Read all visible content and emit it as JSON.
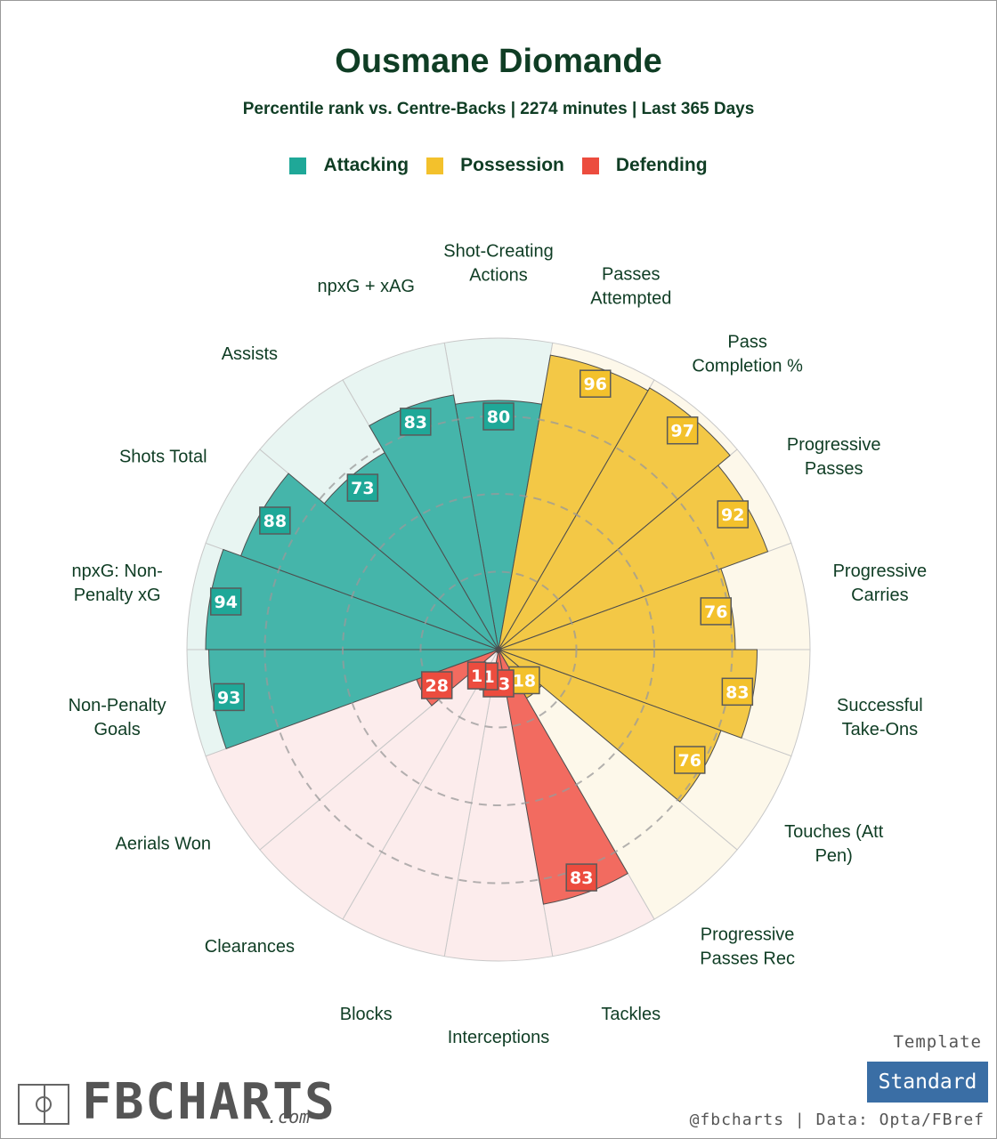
{
  "title": "Ousmane Diomande",
  "subtitle": "Percentile rank vs. Centre-Backs | 2274 minutes | Last 365 Days",
  "legend": [
    {
      "name": "Attacking",
      "color": "#1fa898"
    },
    {
      "name": "Possession",
      "color": "#f3c12c"
    },
    {
      "name": "Defending",
      "color": "#ec4c3e"
    }
  ],
  "chart_data": {
    "type": "polar-bar",
    "rlim": [
      0,
      100
    ],
    "group_colors": {
      "Attacking": "#45b5aa",
      "Possession": "#f3c846",
      "Defending": "#f26b60"
    },
    "group_background_colors": {
      "Attacking": "#e8f5f2",
      "Possession": "#fdf8ea",
      "Defending": "#fcecec"
    },
    "categories": [
      {
        "label": "Shot-Creating Actions",
        "group": "Attacking",
        "value": 80
      },
      {
        "label": "Passes Attempted",
        "group": "Possession",
        "value": 96
      },
      {
        "label": "Pass Completion %",
        "group": "Possession",
        "value": 97
      },
      {
        "label": "Progressive Passes",
        "group": "Possession",
        "value": 92
      },
      {
        "label": "Progressive Carries",
        "group": "Possession",
        "value": 76
      },
      {
        "label": "Successful Take-Ons",
        "group": "Possession",
        "value": 83
      },
      {
        "label": "Touches (Att Pen)",
        "group": "Possession",
        "value": 76
      },
      {
        "label": "Progressive Passes Rec",
        "group": "Possession",
        "value": 18
      },
      {
        "label": "Tackles",
        "group": "Defending",
        "value": 83
      },
      {
        "label": "Interceptions",
        "group": "Defending",
        "value": 13
      },
      {
        "label": "Blocks",
        "group": "Defending",
        "value": 1
      },
      {
        "label": "Clearances",
        "group": "Defending",
        "value": 1
      },
      {
        "label": "Aerials Won",
        "group": "Defending",
        "value": 28
      },
      {
        "label": "Non-Penalty Goals",
        "group": "Attacking",
        "value": 93
      },
      {
        "label": "npxG: Non-Penalty xG",
        "group": "Attacking",
        "value": 94
      },
      {
        "label": "Shots Total",
        "group": "Attacking",
        "value": 88
      },
      {
        "label": "Assists",
        "group": "Attacking",
        "value": 73
      },
      {
        "label": "npxG + xAG",
        "group": "Attacking",
        "value": 83
      }
    ],
    "category_label_lines": [
      [
        "Shot-Creating",
        "Actions"
      ],
      [
        "Passes",
        "Attempted"
      ],
      [
        "Pass",
        "Completion %"
      ],
      [
        "Progressive",
        "Passes"
      ],
      [
        "Progressive",
        "Carries"
      ],
      [
        "Successful",
        "Take-Ons"
      ],
      [
        "Touches (Att",
        "Pen)"
      ],
      [
        "Progressive",
        "Passes Rec"
      ],
      [
        "Tackles"
      ],
      [
        "Interceptions"
      ],
      [
        "Blocks"
      ],
      [
        "Clearances"
      ],
      [
        "Aerials Won"
      ],
      [
        "Non-Penalty",
        "Goals"
      ],
      [
        "npxG: Non-",
        "Penalty xG"
      ],
      [
        "Shots Total"
      ],
      [
        "Assists"
      ],
      [
        "npxG + xAG"
      ]
    ]
  },
  "branding": {
    "logo_text": "FBCHARTS",
    "logo_suffix": ".com",
    "template_label": "Template",
    "template_button": "Standard",
    "credit": "@fbcharts | Data: Opta/FBref"
  }
}
